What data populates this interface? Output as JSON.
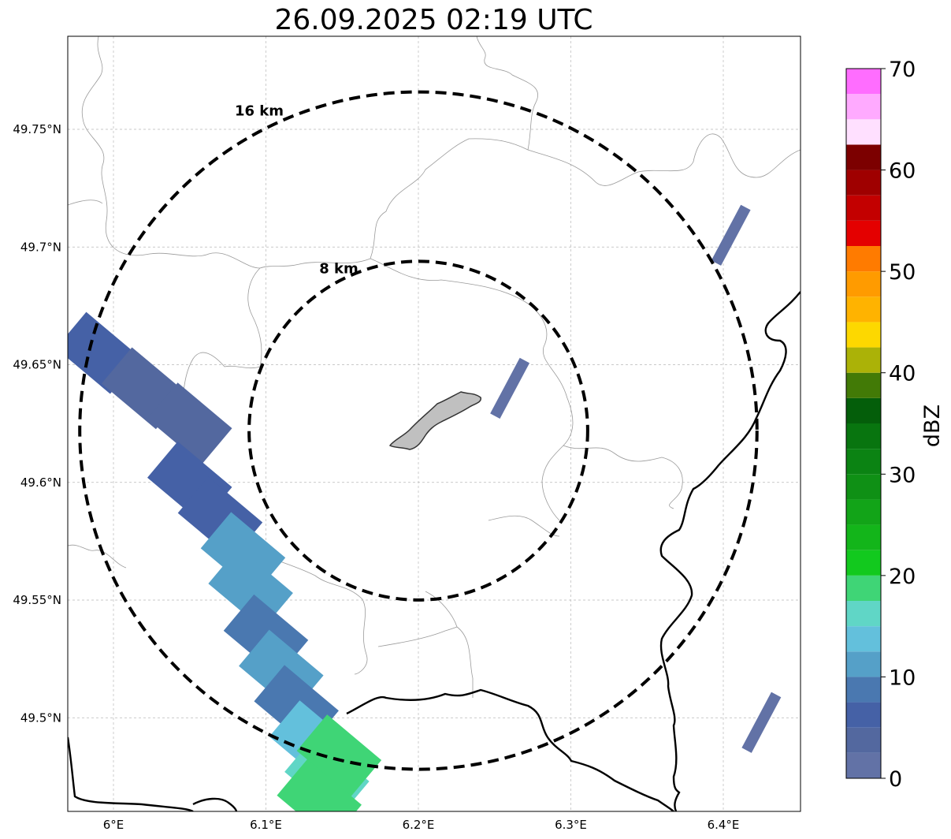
{
  "title": "26.09.2025 02:19 UTC",
  "map": {
    "extent": {
      "lon_min": 5.97,
      "lon_max": 6.45,
      "lat_min": 49.46,
      "lat_max": 49.79
    },
    "center": {
      "lon": 6.2,
      "lat": 49.622
    },
    "lat_ticks": [
      {
        "value": 49.75,
        "label": "49.75°N"
      },
      {
        "value": 49.7,
        "label": "49.7°N"
      },
      {
        "value": 49.65,
        "label": "49.65°N"
      },
      {
        "value": 49.6,
        "label": "49.6°N"
      },
      {
        "value": 49.55,
        "label": "49.55°N"
      },
      {
        "value": 49.5,
        "label": "49.5°N"
      }
    ],
    "lon_ticks": [
      {
        "value": 6.0,
        "label": "6°E"
      },
      {
        "value": 6.1,
        "label": "6.1°E"
      },
      {
        "value": 6.2,
        "label": "6.2°E"
      },
      {
        "value": 6.3,
        "label": "6.3°E"
      },
      {
        "value": 6.4,
        "label": "6.4°E"
      }
    ],
    "range_rings": [
      {
        "radius_km": 8,
        "label": "8 km"
      },
      {
        "radius_km": 16,
        "label": "16 km"
      }
    ],
    "gridlines": true
  },
  "colorbar": {
    "label": "dBZ",
    "ticks": [
      {
        "value": 0,
        "label": "0"
      },
      {
        "value": 10,
        "label": "10"
      },
      {
        "value": 20,
        "label": "20"
      },
      {
        "value": 30,
        "label": "30"
      },
      {
        "value": 40,
        "label": "40"
      },
      {
        "value": 50,
        "label": "50"
      },
      {
        "value": 60,
        "label": "60"
      },
      {
        "value": 70,
        "label": "70"
      }
    ],
    "levels": [
      {
        "from": 0,
        "color": "#6272a6"
      },
      {
        "from": 2.5,
        "color": "#53689f"
      },
      {
        "from": 5,
        "color": "#4561a6"
      },
      {
        "from": 7.5,
        "color": "#4a78b0"
      },
      {
        "from": 10,
        "color": "#55a0c8"
      },
      {
        "from": 12.5,
        "color": "#63c0dc"
      },
      {
        "from": 15,
        "color": "#60d6c6"
      },
      {
        "from": 17.5,
        "color": "#3fd576"
      },
      {
        "from": 20,
        "color": "#12c91e"
      },
      {
        "from": 22.5,
        "color": "#13b51a"
      },
      {
        "from": 25,
        "color": "#12a418"
      },
      {
        "from": 27.5,
        "color": "#0f9015"
      },
      {
        "from": 30,
        "color": "#0b8313"
      },
      {
        "from": 32.5,
        "color": "#08750f"
      },
      {
        "from": 35,
        "color": "#045e0a"
      },
      {
        "from": 37.5,
        "color": "#427a06"
      },
      {
        "from": 40,
        "color": "#abb207"
      },
      {
        "from": 42.5,
        "color": "#fdd800"
      },
      {
        "from": 45,
        "color": "#ffb300"
      },
      {
        "from": 47.5,
        "color": "#ff9b00"
      },
      {
        "from": 50,
        "color": "#ff7b00"
      },
      {
        "from": 52.5,
        "color": "#e40000"
      },
      {
        "from": 55,
        "color": "#c30000"
      },
      {
        "from": 57.5,
        "color": "#9f0000"
      },
      {
        "from": 60,
        "color": "#7c0000"
      },
      {
        "from": 62.5,
        "color": "#ffe0ff"
      },
      {
        "from": 65,
        "color": "#ffaaff"
      },
      {
        "from": 67.5,
        "color": "#ff6dff"
      },
      {
        "from": 70,
        "color": "#ee33ee"
      }
    ]
  },
  "precip_cells": [
    {
      "lon": 5.99,
      "lat": 49.655,
      "dbz": 5
    },
    {
      "lon": 6.02,
      "lat": 49.64,
      "dbz": 3
    },
    {
      "lon": 6.05,
      "lat": 49.625,
      "dbz": 4
    },
    {
      "lon": 6.05,
      "lat": 49.6,
      "dbz": 6
    },
    {
      "lon": 6.07,
      "lat": 49.585,
      "dbz": 7
    },
    {
      "lon": 6.085,
      "lat": 49.57,
      "dbz": 10
    },
    {
      "lon": 6.09,
      "lat": 49.555,
      "dbz": 12
    },
    {
      "lon": 6.1,
      "lat": 49.535,
      "dbz": 8
    },
    {
      "lon": 6.11,
      "lat": 49.52,
      "dbz": 11
    },
    {
      "lon": 6.12,
      "lat": 49.505,
      "dbz": 9
    },
    {
      "lon": 6.13,
      "lat": 49.49,
      "dbz": 13
    },
    {
      "lon": 6.14,
      "lat": 49.475,
      "dbz": 15
    },
    {
      "lon": 6.148,
      "lat": 49.484,
      "dbz": 19
    },
    {
      "lon": 6.135,
      "lat": 49.465,
      "dbz": 18
    },
    {
      "lon": 6.26,
      "lat": 49.64,
      "dbz": 1
    },
    {
      "lon": 6.405,
      "lat": 49.705,
      "dbz": 1
    },
    {
      "lon": 6.425,
      "lat": 49.498,
      "dbz": 1
    }
  ]
}
